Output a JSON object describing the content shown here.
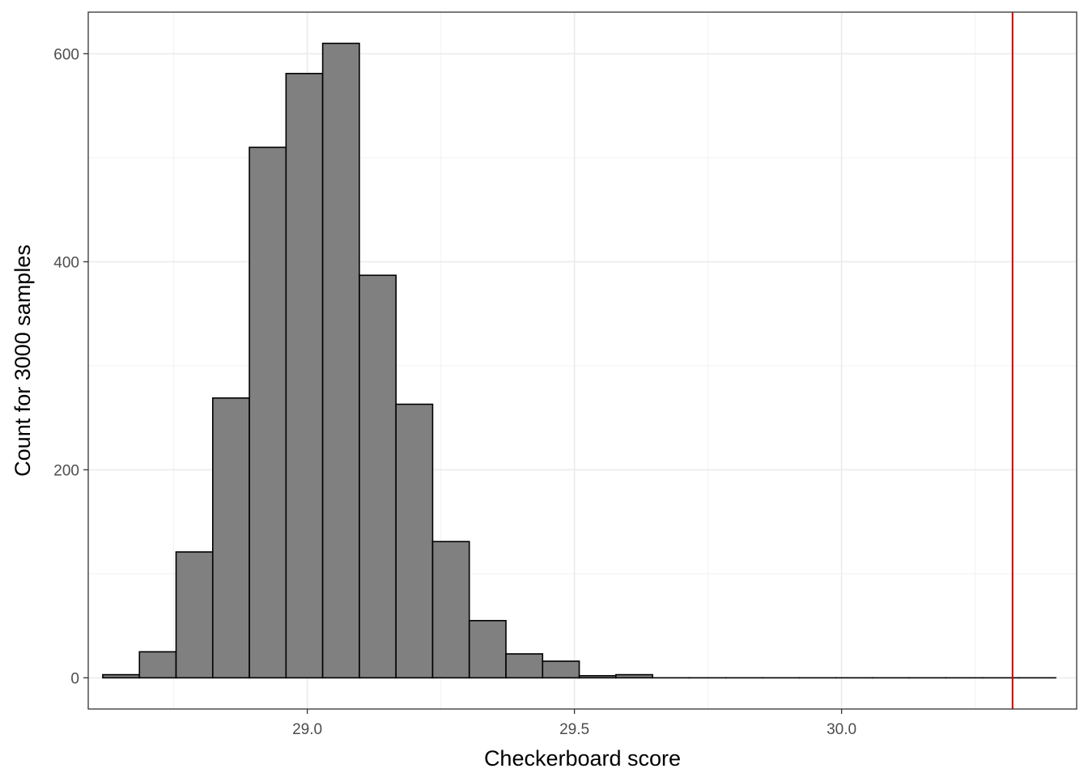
{
  "chart_data": {
    "type": "bar",
    "xlabel": "Checkerboard score",
    "ylabel": "Count for 3000 samples",
    "xlim": [
      28.59,
      30.44
    ],
    "ylim": [
      -30,
      640
    ],
    "x_ticks": [
      29.0,
      29.5,
      30.0
    ],
    "x_tick_labels": [
      "29.0",
      "29.5",
      "30.0"
    ],
    "y_ticks": [
      0,
      200,
      400,
      600
    ],
    "y_tick_labels": [
      "0",
      "200",
      "400",
      "600"
    ],
    "x_minor_gridlines": [
      28.75,
      29.25,
      29.75,
      30.25
    ],
    "y_minor_gridlines": [
      100,
      300,
      500
    ],
    "grid": true,
    "bin_width": 0.0686,
    "bin_start": 28.6172,
    "counts": [
      3,
      25,
      121,
      269,
      510,
      581,
      610,
      387,
      263,
      131,
      55,
      23,
      16,
      2,
      3,
      0,
      0,
      0,
      0,
      0,
      0,
      0,
      0,
      0,
      0,
      0
    ],
    "bar_fill": "#808080",
    "bar_outline": "#000000",
    "vline": {
      "x": 30.32,
      "color": "#cc0000"
    }
  }
}
